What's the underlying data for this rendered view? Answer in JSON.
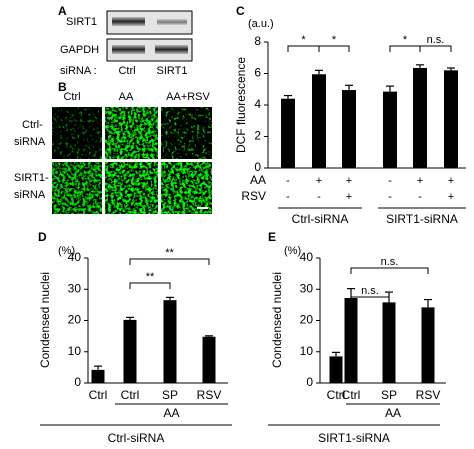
{
  "blot": {
    "panel_label": "A",
    "rows": [
      "SIRT1",
      "GAPDH"
    ],
    "lane_header": "siRNA :",
    "lanes": [
      "Ctrl",
      "SIRT1"
    ]
  },
  "micrographs": {
    "panel_label": "B",
    "columns": [
      "Ctrl",
      "AA",
      "AA+RSV"
    ],
    "rows": [
      [
        "Ctrl-",
        "siRNA"
      ],
      [
        "SIRT1-",
        "siRNA"
      ]
    ]
  },
  "chart_data": [
    {
      "type": "bar",
      "panel_label": "C",
      "unit_label": "(a.u.)",
      "y_label": "DCF fluorescence",
      "categories": [
        null,
        null,
        null,
        null,
        null,
        null
      ],
      "values": [
        4.4,
        5.95,
        4.95,
        4.85,
        6.35,
        6.2
      ],
      "errors": [
        0.2,
        0.25,
        0.3,
        0.35,
        0.2,
        0.15
      ],
      "color": "#000000",
      "ylim": [
        0,
        8
      ],
      "yticks": [
        0,
        2,
        4,
        6,
        8
      ],
      "factors": [
        {
          "name": "AA",
          "levels": [
            "-",
            "+",
            "+",
            "-",
            "+",
            "+"
          ]
        },
        {
          "name": "RSV",
          "levels": [
            "-",
            "-",
            "+",
            "-",
            "-",
            "+"
          ]
        }
      ],
      "groups": [
        "Ctrl-siRNA",
        "SIRT1-siRNA"
      ],
      "significance": [
        "*",
        "*",
        "*",
        "n.s."
      ]
    },
    {
      "type": "bar",
      "panel_label": "D",
      "unit_label": "(%)",
      "y_label": "Condensed nuclei",
      "categories": [
        "Ctrl",
        "Ctrl",
        "SP",
        "RSV"
      ],
      "values": [
        4.2,
        20.2,
        26.5,
        14.8
      ],
      "errors": [
        1.2,
        0.8,
        0.9,
        0.3
      ],
      "color": "#000000",
      "ylim": [
        0,
        40
      ],
      "yticks": [
        0,
        10,
        20,
        30,
        40
      ],
      "treatment": "AA",
      "groups": [
        "Ctrl-siRNA"
      ],
      "significance": [
        "**",
        "**"
      ]
    },
    {
      "type": "bar",
      "panel_label": "E",
      "unit_label": "(%)",
      "y_label": "Condensed nuclei",
      "categories": [
        "Ctrl",
        "Ctrl",
        "SP",
        "RSV"
      ],
      "values": [
        8.5,
        27.2,
        25.8,
        24.2
      ],
      "errors": [
        1.3,
        3.0,
        3.3,
        2.5
      ],
      "color": "#000000",
      "ylim": [
        0,
        40
      ],
      "yticks": [
        0,
        10,
        20,
        30,
        40
      ],
      "treatment": "AA",
      "groups": [
        "SIRT1-siRNA"
      ],
      "significance": [
        "n.s.",
        "n.s."
      ]
    }
  ]
}
